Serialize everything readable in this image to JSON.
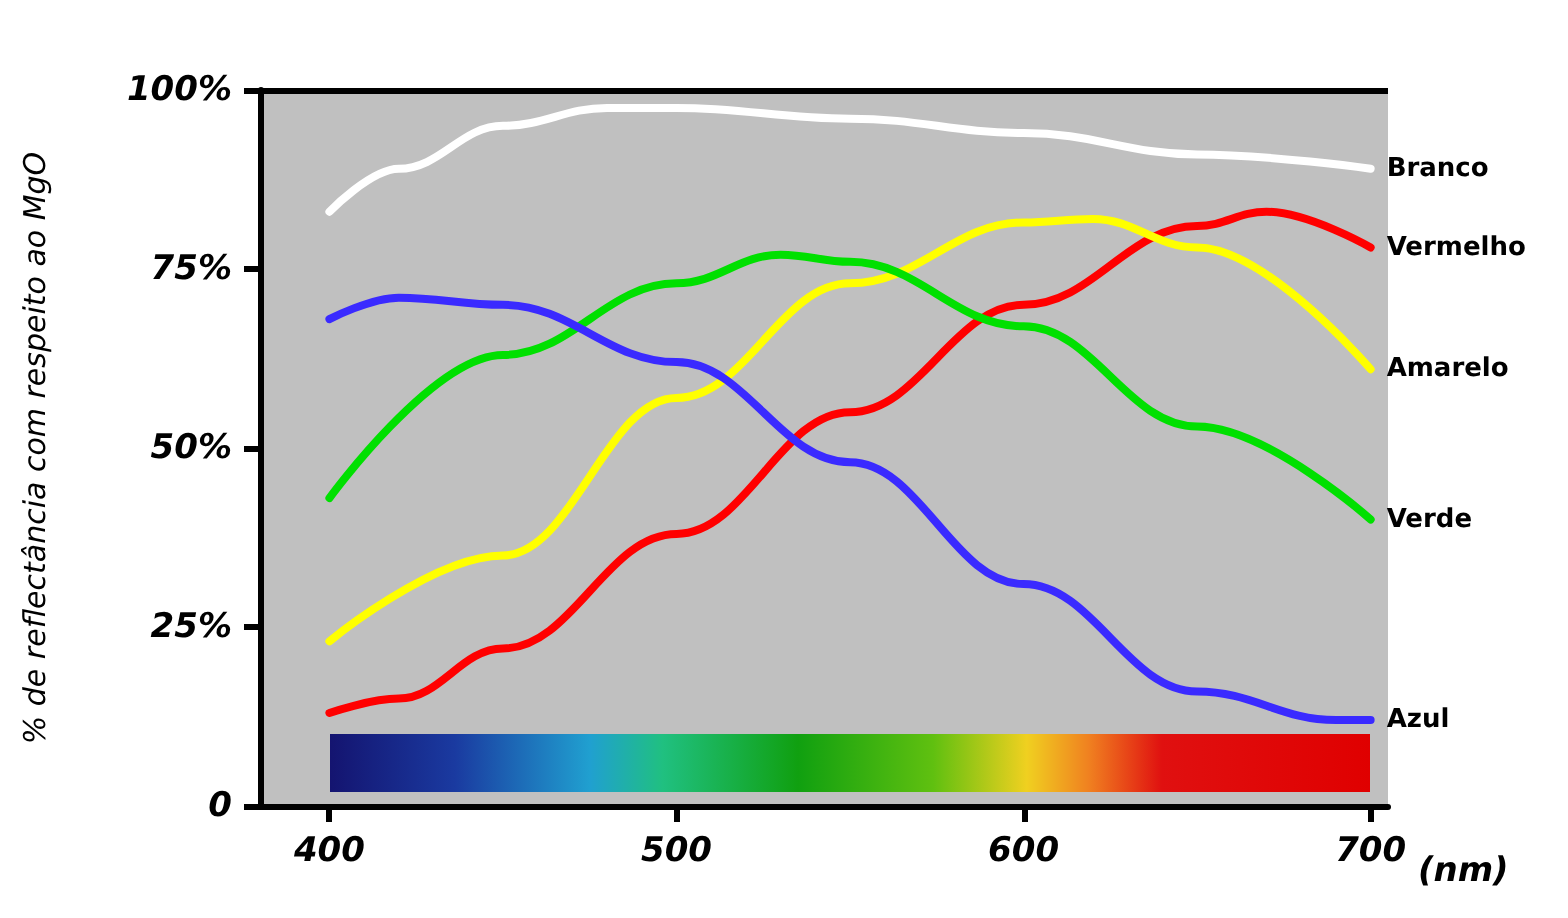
{
  "chart_data": {
    "type": "line",
    "ylabel": "% de reflectância com respeito ao MgO",
    "xlabel": "(nm)",
    "xlim": [
      380,
      705
    ],
    "xticks": [
      400,
      500,
      600,
      700
    ],
    "ylim": [
      0,
      100
    ],
    "yticks": [
      {
        "value": 0,
        "label": "0"
      },
      {
        "value": 25,
        "label": "25%"
      },
      {
        "value": 50,
        "label": "50%"
      },
      {
        "value": 75,
        "label": "75%"
      },
      {
        "value": 100,
        "label": "100%"
      }
    ],
    "grid": false,
    "legend": false,
    "marker": "none",
    "line_style": "solid",
    "ref_lines": [
      {
        "axis": "y",
        "value": 100,
        "color": "#000000"
      }
    ],
    "series": [
      {
        "name": "Branco",
        "color": "#ffffff",
        "x": [
          400,
          420,
          450,
          480,
          500,
          550,
          600,
          650,
          700
        ],
        "values": [
          83,
          89,
          95,
          97.5,
          97.5,
          96,
          94,
          91,
          89
        ]
      },
      {
        "name": "Vermelho",
        "color": "#ff0000",
        "x": [
          400,
          420,
          450,
          500,
          550,
          600,
          650,
          670,
          700
        ],
        "values": [
          13,
          15,
          22,
          38,
          55,
          70,
          81,
          83,
          78
        ]
      },
      {
        "name": "Amarelo",
        "color": "#ffff00",
        "x": [
          400,
          450,
          500,
          550,
          600,
          620,
          650,
          700
        ],
        "values": [
          23,
          35,
          57,
          73,
          81.5,
          82,
          78,
          61
        ]
      },
      {
        "name": "Verde",
        "color": "#00e000",
        "x": [
          400,
          450,
          500,
          530,
          550,
          600,
          650,
          700
        ],
        "values": [
          43,
          63,
          73,
          77,
          76,
          67,
          53,
          40
        ]
      },
      {
        "name": "Azul",
        "color": "#3a2aff",
        "x": [
          400,
          420,
          450,
          500,
          550,
          600,
          650,
          690,
          700
        ],
        "values": [
          68,
          71,
          70,
          62,
          48,
          31,
          16,
          12,
          12
        ]
      }
    ]
  }
}
